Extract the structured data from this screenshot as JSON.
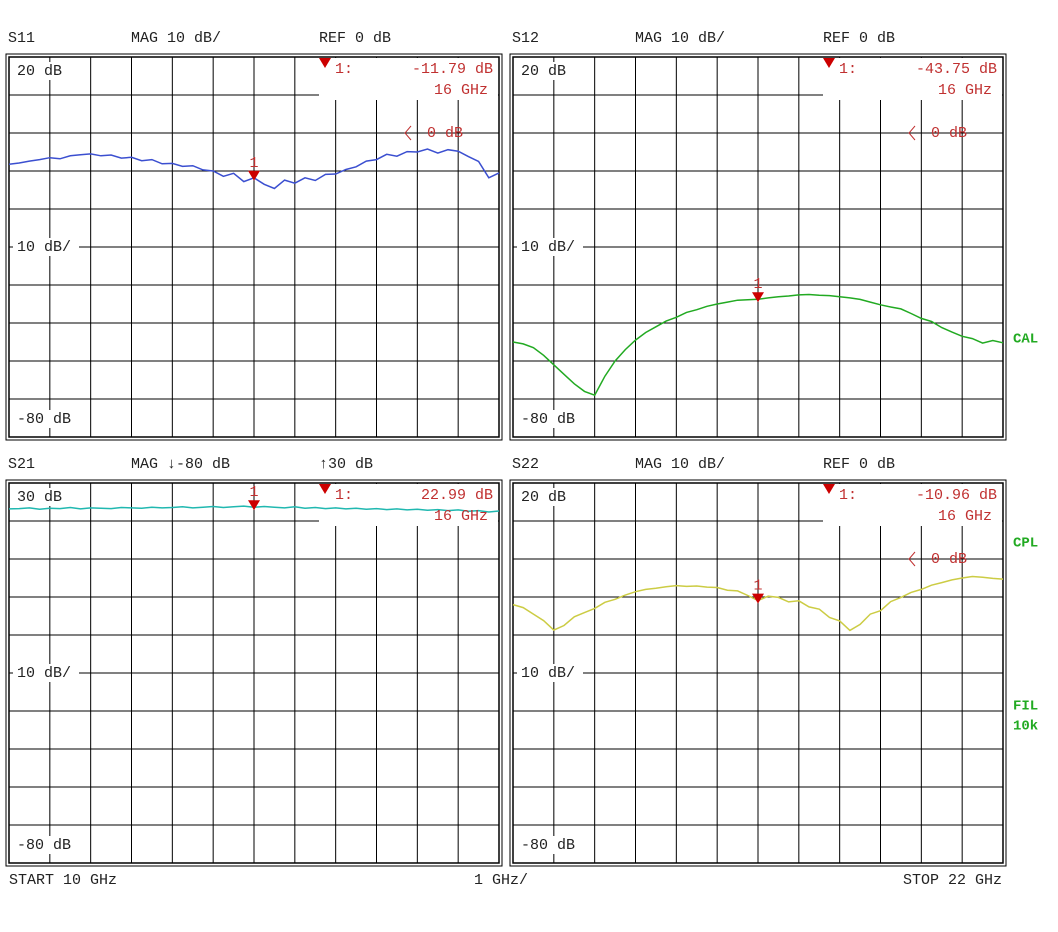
{
  "chart_data": [
    {
      "type": "line",
      "title": "S11",
      "scale": "MAG 10 dB/",
      "ref": "REF 0 dB",
      "color": "#3b4fd0",
      "xlim": [
        10,
        22
      ],
      "xticks": [
        10,
        11,
        12,
        13,
        14,
        15,
        16,
        17,
        18,
        19,
        20,
        21,
        22
      ],
      "ylim": [
        -80,
        20
      ],
      "yticks": [
        -80,
        -70,
        -60,
        -50,
        -40,
        -30,
        -20,
        -10,
        0,
        10,
        20
      ],
      "ylabels": [
        {
          "value": 20,
          "label": "20 dB"
        },
        {
          "value": -30,
          "label": "10 dB/"
        },
        {
          "value": -80,
          "label": "-80 dB"
        }
      ],
      "ref_marker": {
        "value": 0,
        "label": "0 dB"
      },
      "marker": {
        "label": "1",
        "readout": "1:",
        "x": 16,
        "value": -11.79,
        "value_label": "-11.79 dB",
        "x_label": "16 GHz"
      },
      "x": [
        10,
        10.25,
        10.5,
        10.75,
        11,
        11.25,
        11.5,
        11.75,
        12,
        12.25,
        12.5,
        12.75,
        13,
        13.25,
        13.5,
        13.75,
        14,
        14.25,
        14.5,
        14.75,
        15,
        15.25,
        15.5,
        15.75,
        16,
        16.25,
        16.5,
        16.75,
        17,
        17.25,
        17.5,
        17.75,
        18,
        18.25,
        18.5,
        18.75,
        19,
        19.25,
        19.5,
        19.75,
        20,
        20.25,
        20.5,
        20.75,
        21,
        21.25,
        21.5,
        21.75,
        22
      ],
      "values": [
        -8.2,
        -7.9,
        -7.4,
        -7.0,
        -6.5,
        -6.8,
        -6.0,
        -5.7,
        -5.5,
        -6.0,
        -5.8,
        -6.6,
        -6.4,
        -7.3,
        -7.0,
        -8.1,
        -8.0,
        -8.8,
        -8.6,
        -9.7,
        -10.0,
        -11.4,
        -10.6,
        -12.8,
        -11.79,
        -13.5,
        -14.6,
        -12.4,
        -13.2,
        -11.8,
        -12.5,
        -10.9,
        -10.8,
        -9.6,
        -8.9,
        -7.4,
        -7.0,
        -5.6,
        -6.1,
        -4.9,
        -5.0,
        -4.2,
        -5.3,
        -4.4,
        -4.8,
        -6.2,
        -7.5,
        -11.8,
        -10.5
      ]
    },
    {
      "type": "line",
      "title": "S12",
      "scale": "MAG 10 dB/",
      "ref": "REF 0 dB",
      "color": "#22aa22",
      "xlim": [
        10,
        22
      ],
      "xticks": [
        10,
        11,
        12,
        13,
        14,
        15,
        16,
        17,
        18,
        19,
        20,
        21,
        22
      ],
      "ylim": [
        -80,
        20
      ],
      "yticks": [
        -80,
        -70,
        -60,
        -50,
        -40,
        -30,
        -20,
        -10,
        0,
        10,
        20
      ],
      "ylabels": [
        {
          "value": 20,
          "label": "20 dB"
        },
        {
          "value": -30,
          "label": "10 dB/"
        },
        {
          "value": -80,
          "label": "-80 dB"
        }
      ],
      "ref_marker": {
        "value": 0,
        "label": "0 dB"
      },
      "marker": {
        "label": "1",
        "readout": "1:",
        "x": 16,
        "value": -43.75,
        "value_label": "-43.75 dB",
        "x_label": "16 GHz"
      },
      "x": [
        10,
        10.25,
        10.5,
        10.75,
        11,
        11.25,
        11.5,
        11.75,
        12,
        12.25,
        12.5,
        12.75,
        13,
        13.25,
        13.5,
        13.75,
        14,
        14.25,
        14.5,
        14.75,
        15,
        15.25,
        15.5,
        15.75,
        16,
        16.25,
        16.5,
        16.75,
        17,
        17.25,
        17.5,
        17.75,
        18,
        18.25,
        18.5,
        18.75,
        19,
        19.25,
        19.5,
        19.75,
        20,
        20.25,
        20.5,
        20.75,
        21,
        21.25,
        21.5,
        21.75,
        22
      ],
      "values": [
        -55,
        -55.5,
        -56.5,
        -58.5,
        -61,
        -63.5,
        -66,
        -68,
        -69,
        -64,
        -60,
        -57,
        -54.5,
        -52.5,
        -51,
        -49.5,
        -48.5,
        -47.2,
        -46.5,
        -45.6,
        -45,
        -44.5,
        -44,
        -43.9,
        -43.75,
        -43.4,
        -43.1,
        -42.9,
        -42.6,
        -42.5,
        -42.7,
        -42.8,
        -43.1,
        -43.4,
        -43.8,
        -44.5,
        -45.2,
        -45.8,
        -46.3,
        -47.5,
        -48.8,
        -49.6,
        -51.2,
        -52.4,
        -53.5,
        -54.1,
        -55.3,
        -54.6,
        -55.2
      ]
    },
    {
      "type": "line",
      "title": "S21",
      "scale": "MAG ↓-80 dB",
      "ref": "↑30 dB",
      "color": "#20b8b0",
      "xlim": [
        10,
        22
      ],
      "xticks": [
        10,
        11,
        12,
        13,
        14,
        15,
        16,
        17,
        18,
        19,
        20,
        21,
        22
      ],
      "ylim": [
        -80,
        30
      ],
      "yticks": [
        -80,
        -69,
        -58,
        -47,
        -36,
        -25,
        -14,
        -3,
        8,
        19,
        30
      ],
      "ylabels": [
        {
          "value": 30,
          "label": "30 dB"
        },
        {
          "value": -25,
          "label": "10 dB/"
        },
        {
          "value": -80,
          "label": "-80 dB"
        }
      ],
      "marker": {
        "label": "1",
        "readout": "1:",
        "x": 16,
        "value": 22.99,
        "value_label": "22.99 dB",
        "x_label": "16 GHz"
      },
      "x": [
        10,
        10.25,
        10.5,
        10.75,
        11,
        11.25,
        11.5,
        11.75,
        12,
        12.25,
        12.5,
        12.75,
        13,
        13.25,
        13.5,
        13.75,
        14,
        14.25,
        14.5,
        14.75,
        15,
        15.25,
        15.5,
        15.75,
        16,
        16.25,
        16.5,
        16.75,
        17,
        17.25,
        17.5,
        17.75,
        18,
        18.25,
        18.5,
        18.75,
        19,
        19.25,
        19.5,
        19.75,
        20,
        20.25,
        20.5,
        20.75,
        21,
        21.25,
        21.5,
        21.75,
        22
      ],
      "values": [
        22.5,
        22.6,
        22.8,
        22.4,
        22.7,
        22.6,
        22.9,
        22.5,
        22.8,
        22.7,
        22.6,
        22.9,
        22.8,
        22.7,
        23.0,
        22.8,
        22.9,
        23.1,
        22.8,
        23.0,
        23.2,
        22.9,
        23.1,
        23.3,
        22.99,
        23.2,
        23.0,
        22.8,
        23.1,
        22.7,
        22.9,
        22.6,
        22.8,
        22.5,
        22.7,
        22.4,
        22.6,
        22.3,
        22.5,
        22.2,
        22.4,
        22.1,
        22.3,
        22.0,
        22.2,
        21.8,
        22.0,
        21.6,
        21.9
      ]
    },
    {
      "type": "line",
      "title": "S22",
      "scale": "MAG 10 dB/",
      "ref": "REF 0 dB",
      "color": "#cccc44",
      "xlim": [
        10,
        22
      ],
      "xticks": [
        10,
        11,
        12,
        13,
        14,
        15,
        16,
        17,
        18,
        19,
        20,
        21,
        22
      ],
      "ylim": [
        -80,
        20
      ],
      "yticks": [
        -80,
        -70,
        -60,
        -50,
        -40,
        -30,
        -20,
        -10,
        0,
        10,
        20
      ],
      "ylabels": [
        {
          "value": 20,
          "label": "20 dB"
        },
        {
          "value": -30,
          "label": "10 dB/"
        },
        {
          "value": -80,
          "label": "-80 dB"
        }
      ],
      "ref_marker": {
        "value": 0,
        "label": "0 dB"
      },
      "marker": {
        "label": "1",
        "readout": "1:",
        "x": 16,
        "value": -10.96,
        "value_label": "-10.96 dB",
        "x_label": "16 GHz"
      },
      "x": [
        10,
        10.25,
        10.5,
        10.75,
        11,
        11.25,
        11.5,
        11.75,
        12,
        12.25,
        12.5,
        12.75,
        13,
        13.25,
        13.5,
        13.75,
        14,
        14.25,
        14.5,
        14.75,
        15,
        15.25,
        15.5,
        15.75,
        16,
        16.25,
        16.5,
        16.75,
        17,
        17.25,
        17.5,
        17.75,
        18,
        18.25,
        18.5,
        18.75,
        19,
        19.25,
        19.5,
        19.75,
        20,
        20.25,
        20.5,
        20.75,
        21,
        21.25,
        21.5,
        21.75,
        22
      ],
      "values": [
        -12,
        -12.8,
        -14.5,
        -16.2,
        -18.7,
        -17.5,
        -15.2,
        -14.1,
        -13,
        -11.4,
        -10.6,
        -9.5,
        -8.6,
        -8.0,
        -7.7,
        -7.3,
        -7.0,
        -7.2,
        -7.1,
        -7.4,
        -7.5,
        -8.2,
        -8.4,
        -9.6,
        -10.96,
        -9.8,
        -10.1,
        -11.3,
        -11.0,
        -12.6,
        -13.2,
        -15.4,
        -16.3,
        -18.8,
        -17.2,
        -14.5,
        -13.6,
        -11.2,
        -10.1,
        -8.8,
        -8.0,
        -6.9,
        -6.2,
        -5.5,
        -5.0,
        -4.6,
        -4.8,
        -5.1,
        -5.3
      ]
    }
  ],
  "footer": {
    "start": "START 10 GHz",
    "step": "1 GHz/",
    "stop": "STOP 22 GHz"
  },
  "side_labels": [
    "CAL",
    "CPL",
    "FIL",
    "10k"
  ]
}
